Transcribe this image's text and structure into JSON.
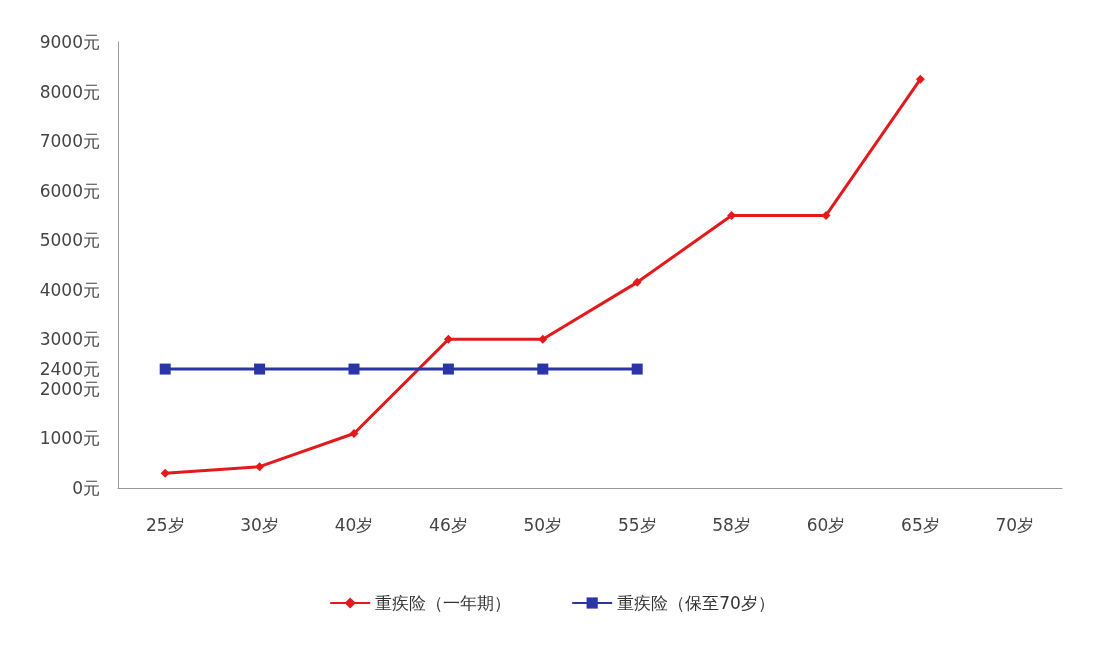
{
  "chart_data": {
    "type": "line",
    "categories": [
      "25岁",
      "30岁",
      "40岁",
      "46岁",
      "50岁",
      "55岁",
      "58岁",
      "60岁",
      "65岁",
      "70岁"
    ],
    "series": [
      {
        "name": "重疾险（一年期）",
        "color": "#e31a1c",
        "marker": "diamond",
        "values": [
          300,
          430,
          1100,
          3000,
          3000,
          4150,
          5500,
          5500,
          8250,
          null
        ]
      },
      {
        "name": "重疾险（保至70岁）",
        "color": "#2b35a8",
        "marker": "square",
        "values": [
          2400,
          2400,
          2400,
          2400,
          2400,
          2400,
          null,
          null,
          null,
          null
        ]
      }
    ],
    "ylim": [
      0,
      9000
    ],
    "yticks": [
      {
        "value": 0,
        "label": "0元"
      },
      {
        "value": 1000,
        "label": "1000元"
      },
      {
        "value": 2000,
        "label": "2000元"
      },
      {
        "value": 2400,
        "label": "2400元"
      },
      {
        "value": 3000,
        "label": "3000元"
      },
      {
        "value": 4000,
        "label": "4000元"
      },
      {
        "value": 5000,
        "label": "5000元"
      },
      {
        "value": 6000,
        "label": "6000元"
      },
      {
        "value": 7000,
        "label": "7000元"
      },
      {
        "value": 8000,
        "label": "8000元"
      },
      {
        "value": 9000,
        "label": "9000元"
      }
    ],
    "grid": false,
    "legend": "bottom"
  }
}
